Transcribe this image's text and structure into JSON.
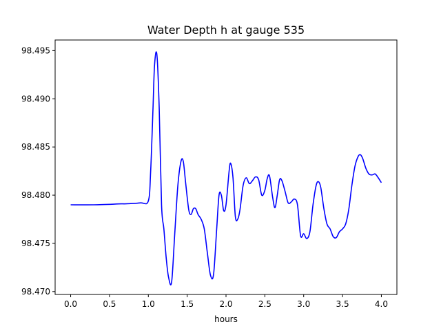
{
  "chart_data": {
    "type": "line",
    "title": "Water Depth h at gauge 535",
    "xlabel": "hours",
    "ylabel": "",
    "xlim": [
      -0.2,
      4.2
    ],
    "ylim": [
      98.4697,
      98.4961
    ],
    "xticks": [
      0.0,
      0.5,
      1.0,
      1.5,
      2.0,
      2.5,
      3.0,
      3.5,
      4.0
    ],
    "xtick_labels": [
      "0.0",
      "0.5",
      "1.0",
      "1.5",
      "2.0",
      "2.5",
      "3.0",
      "3.5",
      "4.0"
    ],
    "yticks": [
      98.47,
      98.475,
      98.48,
      98.485,
      98.49,
      98.495
    ],
    "ytick_labels": [
      "98.470",
      "98.475",
      "98.480",
      "98.485",
      "98.490",
      "98.495"
    ],
    "grid": false,
    "series": [
      {
        "color": "#0000ff",
        "x": [
          0.0,
          0.3,
          0.65,
          0.7,
          0.9,
          1.0,
          1.03,
          1.06,
          1.08,
          1.11,
          1.14,
          1.17,
          1.2,
          1.23,
          1.26,
          1.3,
          1.34,
          1.38,
          1.42,
          1.45,
          1.48,
          1.52,
          1.55,
          1.58,
          1.61,
          1.64,
          1.68,
          1.72,
          1.76,
          1.8,
          1.84,
          1.88,
          1.91,
          1.94,
          1.97,
          2.0,
          2.04,
          2.06,
          2.09,
          2.12,
          2.15,
          2.18,
          2.22,
          2.26,
          2.3,
          2.34,
          2.38,
          2.42,
          2.46,
          2.5,
          2.53,
          2.56,
          2.6,
          2.63,
          2.66,
          2.69,
          2.72,
          2.76,
          2.8,
          2.84,
          2.88,
          2.92,
          2.96,
          3.0,
          3.04,
          3.08,
          3.12,
          3.16,
          3.19,
          3.22,
          3.26,
          3.3,
          3.34,
          3.38,
          3.42,
          3.46,
          3.5,
          3.54,
          3.58,
          3.62,
          3.66,
          3.7,
          3.73,
          3.76,
          3.8,
          3.84,
          3.88,
          3.92,
          3.96,
          4.0
        ],
        "y": [
          98.479,
          98.479,
          98.4791,
          98.4791,
          98.4792,
          98.4794,
          98.4825,
          98.489,
          98.4935,
          98.4946,
          98.489,
          98.479,
          98.4765,
          98.4735,
          98.4715,
          98.471,
          98.476,
          98.481,
          98.4835,
          98.4835,
          98.4813,
          98.4785,
          98.478,
          98.4786,
          98.4786,
          98.478,
          98.4775,
          98.4765,
          98.474,
          98.4717,
          98.4718,
          98.4765,
          98.48,
          98.48,
          98.4784,
          98.479,
          98.4825,
          98.4833,
          98.4818,
          98.4778,
          98.4775,
          98.4785,
          98.481,
          98.4818,
          98.4812,
          98.4815,
          98.4819,
          98.4816,
          98.48,
          98.4805,
          98.4817,
          98.482,
          98.4798,
          98.4787,
          98.48,
          98.4816,
          98.4815,
          98.4804,
          98.4792,
          98.4793,
          98.4796,
          98.479,
          98.4758,
          98.476,
          98.4755,
          98.4762,
          98.479,
          98.481,
          98.4814,
          98.4808,
          98.4786,
          98.477,
          98.4765,
          98.4757,
          98.4756,
          98.4762,
          98.4765,
          98.477,
          98.4785,
          98.481,
          98.483,
          98.484,
          98.4842,
          98.4838,
          98.4828,
          98.4822,
          98.4821,
          98.4822,
          98.4818,
          98.4813
        ]
      }
    ]
  }
}
